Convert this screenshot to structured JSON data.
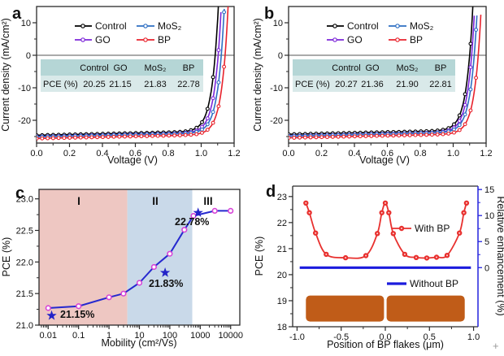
{
  "figure": {
    "background": "#ffffff",
    "cursor_artifact": "+"
  },
  "chart_data": [
    {
      "id": "a",
      "panel_label": "a",
      "type": "line",
      "xlabel": "Voltage (V)",
      "ylabel": "Current density (mA/cm²)",
      "xlim": [
        0,
        1.2
      ],
      "ylim": [
        -27,
        15
      ],
      "xticks": [
        {
          "v": 0,
          "t": "0.0"
        },
        {
          "v": 0.2,
          "t": "0.2"
        },
        {
          "v": 0.4,
          "t": "0.4"
        },
        {
          "v": 0.6,
          "t": "0.6"
        },
        {
          "v": 0.8,
          "t": "0.8"
        },
        {
          "v": 1.0,
          "t": "1.0"
        },
        {
          "v": 1.2,
          "t": "1.2"
        }
      ],
      "yticks": [
        {
          "v": 10,
          "t": "10"
        },
        {
          "v": 0,
          "t": "0"
        },
        {
          "v": -10,
          "t": "-10"
        },
        {
          "v": -20,
          "t": "-20"
        }
      ],
      "yminor": [
        5,
        -5,
        -15,
        -25
      ],
      "xminor": [
        0.1,
        0.3,
        0.5,
        0.7,
        0.9,
        1.1
      ],
      "zero_line": 0,
      "legend": [
        {
          "label": "Control",
          "color": "#000000"
        },
        {
          "label": "MoS₂",
          "color": "#2e6fc3"
        },
        {
          "label": "GO",
          "color": "#7d26d9"
        },
        {
          "label": "BP",
          "color": "#e8232d"
        }
      ],
      "series": [
        {
          "name": "Control",
          "color": "#000000",
          "jsc": 24.6,
          "voc": 1.085
        },
        {
          "name": "GO",
          "color": "#7d26d9",
          "jsc": 25.0,
          "voc": 1.103
        },
        {
          "name": "MoS2",
          "color": "#2e6fc3",
          "jsc": 25.1,
          "voc": 1.122
        },
        {
          "name": "BP",
          "color": "#e8232d",
          "jsc": 25.6,
          "voc": 1.145
        }
      ],
      "table": {
        "header_bg": "#b5d6d6",
        "row_bg": "#d9e9e9",
        "col_headers": [
          "Control",
          "GO",
          "MoS₂",
          "BP"
        ],
        "row_label": "PCE (%)",
        "values": [
          "20.25",
          "21.15",
          "21.83",
          "22.78"
        ]
      }
    },
    {
      "id": "b",
      "panel_label": "b",
      "type": "line",
      "xlabel": "Voltage (V)",
      "ylabel": "Current density (mA/cm²)",
      "xlim": [
        0,
        1.2
      ],
      "ylim": [
        -27,
        15
      ],
      "xticks": [
        {
          "v": 0,
          "t": "0.0"
        },
        {
          "v": 0.2,
          "t": "0.2"
        },
        {
          "v": 0.4,
          "t": "0.4"
        },
        {
          "v": 0.6,
          "t": "0.6"
        },
        {
          "v": 0.8,
          "t": "0.8"
        },
        {
          "v": 1.0,
          "t": "1.0"
        },
        {
          "v": 1.2,
          "t": "1.2"
        }
      ],
      "yticks": [
        {
          "v": 10,
          "t": "10"
        },
        {
          "v": 0,
          "t": "0"
        },
        {
          "v": -10,
          "t": "-10"
        },
        {
          "v": -20,
          "t": "-20"
        }
      ],
      "yminor": [
        5,
        -5,
        -15,
        -25
      ],
      "xminor": [
        0.1,
        0.3,
        0.5,
        0.7,
        0.9,
        1.1
      ],
      "zero_line": 0,
      "legend": [
        {
          "label": "Control",
          "color": "#000000"
        },
        {
          "label": "MoS₂",
          "color": "#2e6fc3"
        },
        {
          "label": "GO",
          "color": "#7d26d9"
        },
        {
          "label": "BP",
          "color": "#e8232d"
        }
      ],
      "series": [
        {
          "name": "Control",
          "color": "#000000",
          "jsc": 24.3,
          "voc": 1.1
        },
        {
          "name": "GO",
          "color": "#7d26d9",
          "jsc": 24.8,
          "voc": 1.112
        },
        {
          "name": "MoS2",
          "color": "#2e6fc3",
          "jsc": 24.9,
          "voc": 1.128
        },
        {
          "name": "BP",
          "color": "#e8232d",
          "jsc": 25.4,
          "voc": 1.152
        }
      ],
      "table": {
        "header_bg": "#b5d6d6",
        "row_bg": "#d9e9e9",
        "col_headers": [
          "Control",
          "GO",
          "MoS₂",
          "BP"
        ],
        "row_label": "PCE (%)",
        "values": [
          "20.27",
          "21.36",
          "21.90",
          "22.81"
        ]
      }
    },
    {
      "id": "c",
      "panel_label": "c",
      "type": "line",
      "xscale": "log",
      "xlabel": "Mobility (cm²/Vs)",
      "ylabel": "PCE (%)",
      "xlim": [
        0.005,
        20000
      ],
      "ylim": [
        21.0,
        23.15
      ],
      "xticks": [
        {
          "v": 0.01,
          "t": "0.01"
        },
        {
          "v": 0.1,
          "t": "0.1"
        },
        {
          "v": 1,
          "t": "1"
        },
        {
          "v": 10,
          "t": "10"
        },
        {
          "v": 100,
          "t": "100"
        },
        {
          "v": 1000,
          "t": "1000"
        },
        {
          "v": 10000,
          "t": "10000"
        }
      ],
      "yticks": [
        {
          "v": 21.0,
          "t": "21.0"
        },
        {
          "v": 21.5,
          "t": "21.5"
        },
        {
          "v": 22.0,
          "t": "22.0"
        },
        {
          "v": 22.5,
          "t": "22.5"
        },
        {
          "v": 23.0,
          "t": "23.0"
        }
      ],
      "yminor": [
        21.25,
        21.75,
        22.25,
        22.75
      ],
      "regions": [
        {
          "label": "I",
          "from": 0.005,
          "to": 4,
          "color": "#eec7c2"
        },
        {
          "label": "II",
          "from": 4,
          "to": 550,
          "color": "#c9d9e9"
        },
        {
          "label": "III",
          "from": 550,
          "to": 20000,
          "color": "#ffffff"
        }
      ],
      "line_color": "#2629cf",
      "marker_color": "#d743d7",
      "star_color": "#2323c8",
      "points": [
        [
          0.01,
          21.27
        ],
        [
          0.1,
          21.3
        ],
        [
          1,
          21.44
        ],
        [
          3,
          21.5
        ],
        [
          10,
          21.67
        ],
        [
          30,
          21.92
        ],
        [
          100,
          22.13
        ],
        [
          300,
          22.51
        ],
        [
          600,
          22.73
        ],
        [
          3000,
          22.81
        ],
        [
          10000,
          22.81
        ]
      ],
      "stars": [
        {
          "x": 0.013,
          "y": 21.15,
          "label": "21.15%"
        },
        {
          "x": 70,
          "y": 21.83,
          "label": "21.83%"
        },
        {
          "x": 850,
          "y": 22.78,
          "label": "22.78%"
        }
      ]
    },
    {
      "id": "d",
      "panel_label": "d",
      "type": "line",
      "xlabel": "Position of BP flakes (μm)",
      "ylabel": "PCE (%)",
      "xlim": [
        -1.05,
        1.05
      ],
      "ylim": [
        18,
        23.4
      ],
      "xticks": [
        {
          "v": -1.0,
          "t": "-1.0"
        },
        {
          "v": -0.5,
          "t": "-0.5"
        },
        {
          "v": 0.0,
          "t": "0.0"
        },
        {
          "v": 0.5,
          "t": "0.5"
        },
        {
          "v": 1.0,
          "t": "1.0"
        }
      ],
      "xminor": [
        -0.75,
        -0.25,
        0.25,
        0.75
      ],
      "yticks": [
        {
          "v": 23,
          "t": "23"
        },
        {
          "v": 22,
          "t": "22"
        },
        {
          "v": 21,
          "t": "21"
        },
        {
          "v": 20,
          "t": "20"
        },
        {
          "v": 19,
          "t": "19"
        },
        {
          "v": 18,
          "t": "18"
        }
      ],
      "yminor": [
        18.5,
        19.5,
        20.5,
        21.5,
        22.5
      ],
      "right_axis": {
        "label": "Relative enhancement (%)",
        "color": "#2323dd",
        "ticks": [
          {
            "v": 15,
            "t": "15"
          },
          {
            "v": 10,
            "t": "10"
          },
          {
            "v": 5,
            "t": "5"
          },
          {
            "v": 0,
            "t": "0"
          }
        ],
        "minor": [
          2.5,
          7.5,
          12.5
        ],
        "zero_pce": 20.27,
        "pce_per_unit": 0.2
      },
      "with_bp": {
        "label": "With BP",
        "color": "#e8302e",
        "points": [
          [
            -0.9,
            22.75
          ],
          [
            -0.86,
            22.38
          ],
          [
            -0.79,
            21.6
          ],
          [
            -0.67,
            20.78
          ],
          [
            -0.45,
            20.65
          ],
          [
            -0.22,
            20.73
          ],
          [
            -0.09,
            21.58
          ],
          [
            -0.04,
            22.38
          ],
          [
            0.0,
            22.75
          ],
          [
            0.04,
            22.38
          ],
          [
            0.09,
            21.58
          ],
          [
            0.22,
            20.78
          ],
          [
            0.35,
            20.66
          ],
          [
            0.47,
            20.64
          ],
          [
            0.58,
            20.67
          ],
          [
            0.7,
            20.74
          ],
          [
            0.84,
            21.6
          ],
          [
            0.89,
            22.38
          ],
          [
            0.92,
            22.75
          ]
        ]
      },
      "without_bp": {
        "label": "Without BP",
        "color": "#1b1bdd",
        "value": 20.27,
        "x_from": -0.97,
        "x_to": 0.97
      },
      "flakes": {
        "color": "#c05c18",
        "y_from": 18.2,
        "y_to": 19.2,
        "segments": [
          [
            -0.9,
            -0.015
          ],
          [
            0.015,
            0.9
          ]
        ]
      }
    }
  ]
}
